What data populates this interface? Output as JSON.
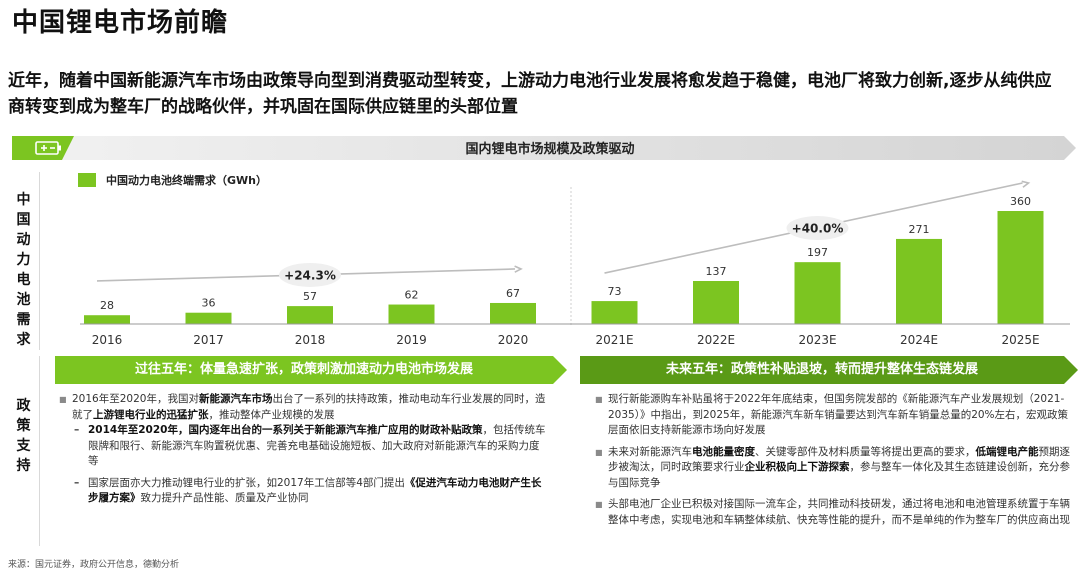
{
  "title": "中国锂电市场前瞻",
  "subtitle": "近年，随着中国新能源汽车市场由政策导向型到消费驱动型转变，上游动力电池行业发展将愈发趋于稳健，电池厂将致力创新,逐步从纯供应商转变到成为整车厂的战略伙伴，并巩固在国际供应链里的头部位置",
  "banner": {
    "title": "国内锂电市场规模及政策驱动",
    "icon": "battery-icon"
  },
  "side_labels": {
    "chart": "中国动力电池需求",
    "policy": "政策支持"
  },
  "colors": {
    "accent": "#7cc521",
    "dark_accent": "#5a9a16",
    "gray": "#b8b8b8"
  },
  "chart_data": {
    "type": "bar",
    "legend": "中国动力电池终端需求（GWh）",
    "categories": [
      "2016",
      "2017",
      "2018",
      "2019",
      "2020",
      "2021E",
      "2022E",
      "2023E",
      "2024E",
      "2025E"
    ],
    "values": [
      28,
      36,
      57,
      62,
      67,
      73,
      137,
      197,
      271,
      360
    ],
    "annotations": [
      {
        "label": "+24.3%",
        "from": "2016",
        "to": "2020"
      },
      {
        "label": "+40.0%",
        "from": "2021E",
        "to": "2025E"
      }
    ]
  },
  "left_panel": {
    "header": "过往五年：体量急速扩张，政策刺激加速动力电池市场发展",
    "bullet1": {
      "pre": "2016年至2020年，我国对",
      "b1": "新能源汽车市场",
      "mid": "出台了一系列的扶持政策，推动电动车行业发展的同时，造就了",
      "b2": "上游锂电行业的迅猛扩张",
      "post": "，推动整体产业规模的发展",
      "sub1": {
        "bold": "2014年至2020年，国内逐年出台的一系列关于新能源汽车推广应用的财政补贴政策",
        "text": "，包括传统车限牌和限行、新能源汽车购置税优惠、完善充电基础设施短板、加大政府对新能源汽车的采购力度等"
      },
      "sub2": {
        "pre": "国家层面亦大力推动锂电行业的扩张，如2017年工信部等4部门提出",
        "bold": "《促进汽车动力电池财产生长步履方案》",
        "post": "致力提升产品性能、质量及产业协同"
      }
    }
  },
  "right_panel": {
    "header": "未来五年：政策性补贴退坡，转而提升整体生态链发展",
    "bullet1": "现行新能源购车补贴虽将于2022年年底结束，但国务院发部的《新能源汽车产业发展规划（2021-2035）》中指出，到2025年，新能源汽车新车销量要达到汽车新车销量总量的20%左右，宏观政策层面依旧支持新能源市场向好发展",
    "bullet2": {
      "p1": "未来对新能源汽车",
      "b1": "电池能量密度",
      "p2": "、关键零部件及材料质量等将提出更高的要求，",
      "b2": "低端锂电产能",
      "p3": "预期逐步被淘汰，同时政策要求行业",
      "b3": "企业积极向上下游探索",
      "p4": "，参与整车一体化及其生态链建设创新，充分参与国际竞争"
    },
    "bullet3": "头部电池厂企业已积极对接国际一流车企，共同推动科技研发，通过将电池和电池管理系统置于车辆整体中考虑，实现电池和车辆整体续航、快充等性能的提升，而不是单纯的作为整车厂的供应商出现"
  },
  "source": "来源：国元证券，政府公开信息，德勤分析"
}
